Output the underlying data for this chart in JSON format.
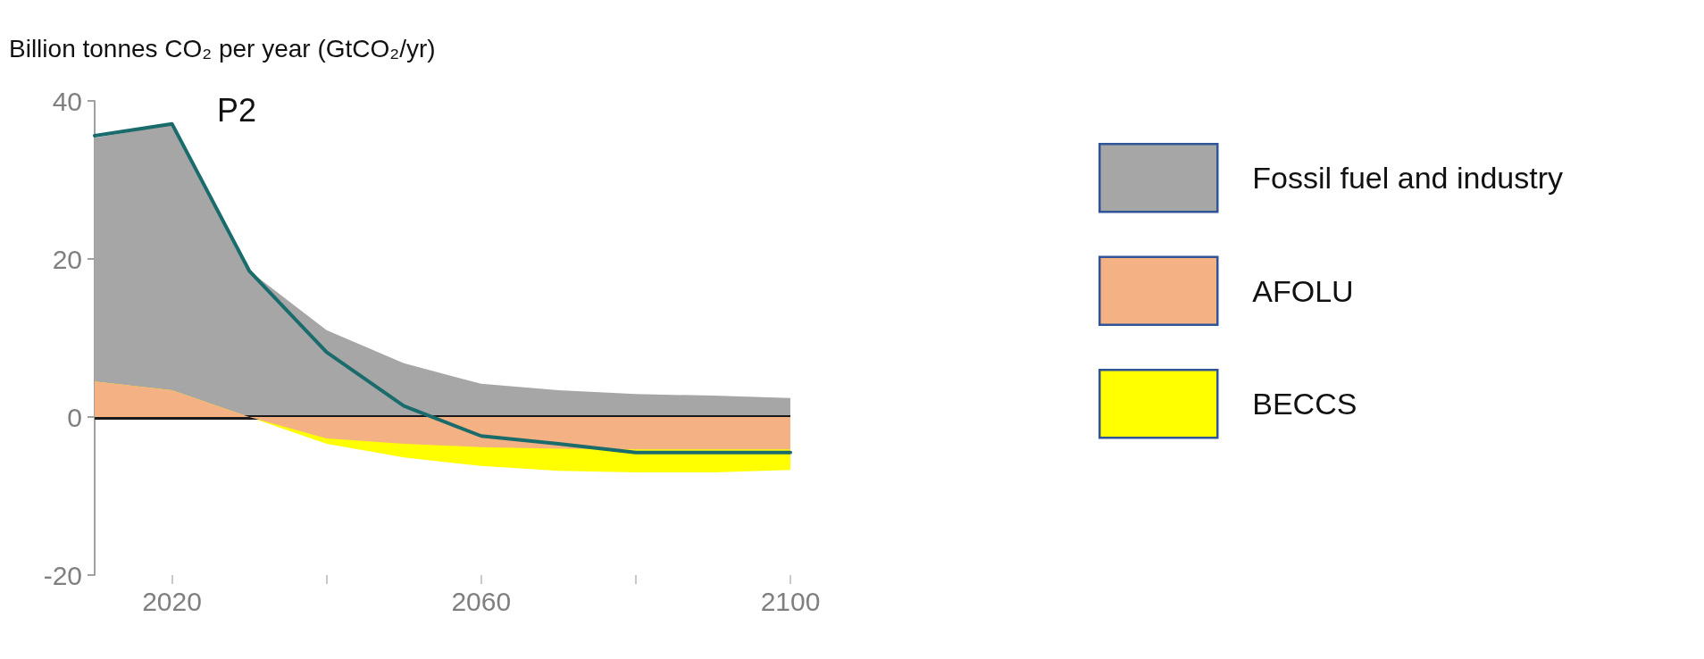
{
  "chart_data": {
    "type": "area",
    "title": "P2",
    "ylabel": "Billion tonnes CO₂ per year (GtCO₂/yr)",
    "x": [
      2010,
      2020,
      2030,
      2040,
      2050,
      2060,
      2070,
      2080,
      2090,
      2100
    ],
    "series": [
      {
        "name": "Fossil fuel and industry",
        "color": "#a6a6a6",
        "values": [
          35.3,
          37,
          18.5,
          11,
          6.8,
          4.2,
          3.4,
          2.9,
          2.7,
          2.4
        ]
      },
      {
        "name": "AFOLU",
        "color": "#f4b183",
        "values": [
          4.5,
          3.4,
          0,
          -2.7,
          -3.4,
          -3.8,
          -4,
          -4.1,
          -4.1,
          -4.1
        ]
      },
      {
        "name": "BECCS",
        "color": "#ffff00",
        "values": [
          4.5,
          3.4,
          0,
          -3.4,
          -5.1,
          -6.2,
          -6.8,
          -7,
          -7,
          -6.7
        ]
      },
      {
        "type": "line",
        "color": "#1a6b6b",
        "values": [
          35.6,
          37.1,
          18.5,
          8.2,
          1.4,
          -2.4,
          -3.4,
          -4.5,
          -4.5,
          -4.5
        ]
      }
    ],
    "xlim": [
      2010,
      2100
    ],
    "xticks": [
      2020,
      {
        "value": 2040,
        "label": null
      },
      2060,
      {
        "value": 2080,
        "label": null
      },
      2100
    ],
    "ylim": [
      -20,
      40
    ],
    "yticks": [
      -20,
      0,
      20,
      40
    ],
    "ref_lines": [
      {
        "axis": "y",
        "value": 0,
        "color": "#1a1a1a"
      }
    ],
    "legend": "right",
    "grid": false,
    "marker": "none"
  }
}
